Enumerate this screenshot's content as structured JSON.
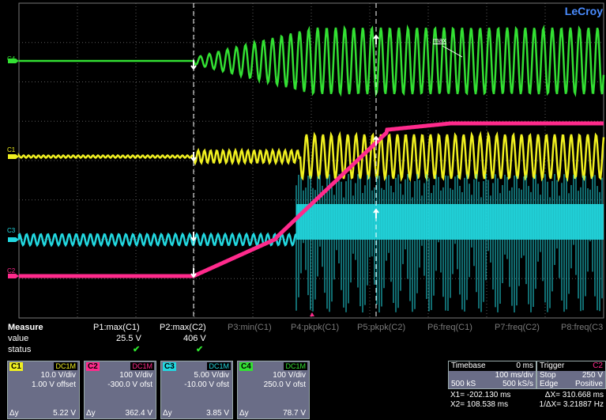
{
  "brand": "LeCroy",
  "scope": {
    "channel_markers": [
      {
        "label": "C4",
        "color": "#33e033"
      },
      {
        "label": "C1",
        "color": "#f0f020"
      },
      {
        "label": "C3",
        "color": "#22d8e0"
      },
      {
        "label": "C2",
        "color": "#ff2a8c"
      }
    ],
    "annotation": "max"
  },
  "colors": {
    "c1": "#f0f020",
    "c2": "#ff2a8c",
    "c3": "#22d8e0",
    "c4": "#33e033",
    "grid": "#5a5a5a"
  },
  "measure": {
    "title": "Measure",
    "row_labels": [
      "value",
      "status"
    ],
    "params": [
      {
        "name": "P1:max(C1)",
        "value": "25.5 V",
        "status": "✔",
        "active": true
      },
      {
        "name": "P2:max(C2)",
        "value": "406 V",
        "status": "✔",
        "active": true
      },
      {
        "name": "P3:min(C1)",
        "value": "",
        "status": "",
        "active": false
      },
      {
        "name": "P4:pkpk(C1)",
        "value": "",
        "status": "",
        "active": false
      },
      {
        "name": "P5:pkpk(C2)",
        "value": "",
        "status": "",
        "active": false
      },
      {
        "name": "P6:freq(C1)",
        "value": "",
        "status": "",
        "active": false
      },
      {
        "name": "P7:freq(C2)",
        "value": "",
        "status": "",
        "active": false
      },
      {
        "name": "P8:freq(C3",
        "value": "",
        "status": "",
        "active": false
      }
    ]
  },
  "channels": [
    {
      "name": "C1",
      "coupling": "DC1M",
      "vdiv": "10.0 V/div",
      "offset": "1.00 V offset",
      "dy_label": "Δy",
      "dy": "5.22 V",
      "color": "#f0f020"
    },
    {
      "name": "C2",
      "coupling": "DC1M",
      "vdiv": "100 V/div",
      "offset": "-300.0 V ofst",
      "dy_label": "Δy",
      "dy": "362.4 V",
      "color": "#ff2a8c"
    },
    {
      "name": "C3",
      "coupling": "DC1M",
      "vdiv": "5.00 V/div",
      "offset": "-10.00 V ofst",
      "dy_label": "Δy",
      "dy": "3.85 V",
      "color": "#22d8e0"
    },
    {
      "name": "C4",
      "coupling": "DC1M",
      "vdiv": "100 V/div",
      "offset": "250.0 V ofst",
      "dy_label": "Δy",
      "dy": "78.7 V",
      "color": "#33e033"
    }
  ],
  "timebase": {
    "title": "Timebase",
    "delay": "0 ms",
    "tdiv": "100 ms/div",
    "samples": "500 kS",
    "rate": "500 kS/s"
  },
  "trigger": {
    "title": "Trigger",
    "channel": "C2",
    "mode": "Stop",
    "level": "250 V",
    "type": "Edge",
    "slope": "Positive"
  },
  "cursors": {
    "x1": "X1=  -202.130 ms",
    "dx": "ΔX=  310.668 ms",
    "x2": "X2=   108.538 ms",
    "inv_dx": "1/ΔX=  3.21887 Hz"
  }
}
